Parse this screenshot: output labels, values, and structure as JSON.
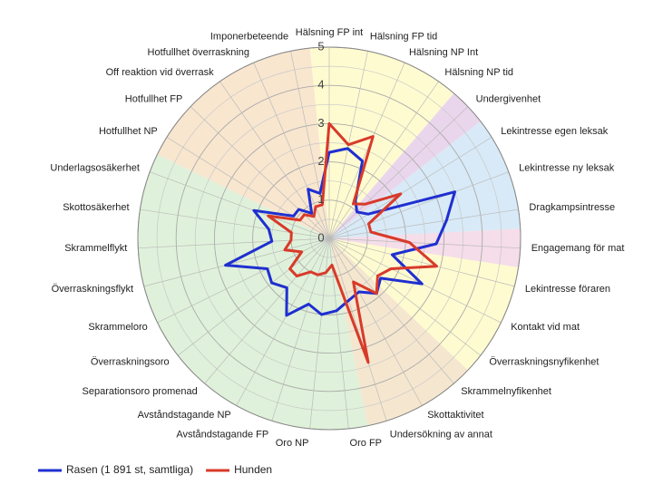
{
  "chart_data": {
    "type": "radar",
    "categories": [
      "Hälsning FP int",
      "Hälsning FP tid",
      "Hälsning NP Int",
      "Hälsning NP tid",
      "Undergivenhet",
      "Lekintresse egen leksak",
      "Lekintresse ny leksak",
      "Dragkampsintresse",
      "Engagemang för mat",
      "Lekintresse föraren",
      "Kontakt vid mat",
      "Överraskningsnyfikenhet",
      "Skrammelnyfikenhet",
      "Skottaktivitet",
      "Undersökning av annat",
      "Oro FP",
      "Oro NP",
      "Avståndstagande FP",
      "Avståndstagande NP",
      "Separationsoro promenad",
      "Överraskningsoro",
      "Skrammeloro",
      "Överraskningsflykt",
      "Skrammelflykt",
      "Skottosäkerhet",
      "Underlagsosäkerhet",
      "Hotfullhet NP",
      "Hotfullhet FP",
      "Off reaktion vid överrask",
      "Hotfullhet överraskning",
      "Imponerbeteende"
    ],
    "series": [
      {
        "name": "Rasen (1 891 st, samtliga)",
        "color": "#1f2fd0",
        "values": [
          2.25,
          2.4,
          2.2,
          1.2,
          1.0,
          1.2,
          3.5,
          3.1,
          2.8,
          1.7,
          2.7,
          1.7,
          1.9,
          1.6,
          1.7,
          1.9,
          2.0,
          1.8,
          2.3,
          1.7,
          1.9,
          1.8,
          2.8,
          1.5,
          1.6,
          2.1,
          1.1,
          1.1,
          0.8,
          1.4,
          1.2
        ]
      },
      {
        "name": "Hunden",
        "color": "#d83a2a",
        "values": [
          3.0,
          2.5,
          2.9,
          1.1,
          1.3,
          2.2,
          1.1,
          1.1,
          2.1,
          2.9,
          1.8,
          1.6,
          1.9,
          1.3,
          3.4,
          0.7,
          0.9,
          1.0,
          1.0,
          1.3,
          1.3,
          0.8,
          1.2,
          1.0,
          1.0,
          1.7,
          0.9,
          0.9,
          0.7,
          0.9,
          0.9
        ]
      }
    ],
    "ylim": [
      0,
      5
    ],
    "yticks": [
      0,
      1,
      2,
      3,
      4,
      5
    ],
    "grid": true,
    "legend": "bottom-left"
  }
}
